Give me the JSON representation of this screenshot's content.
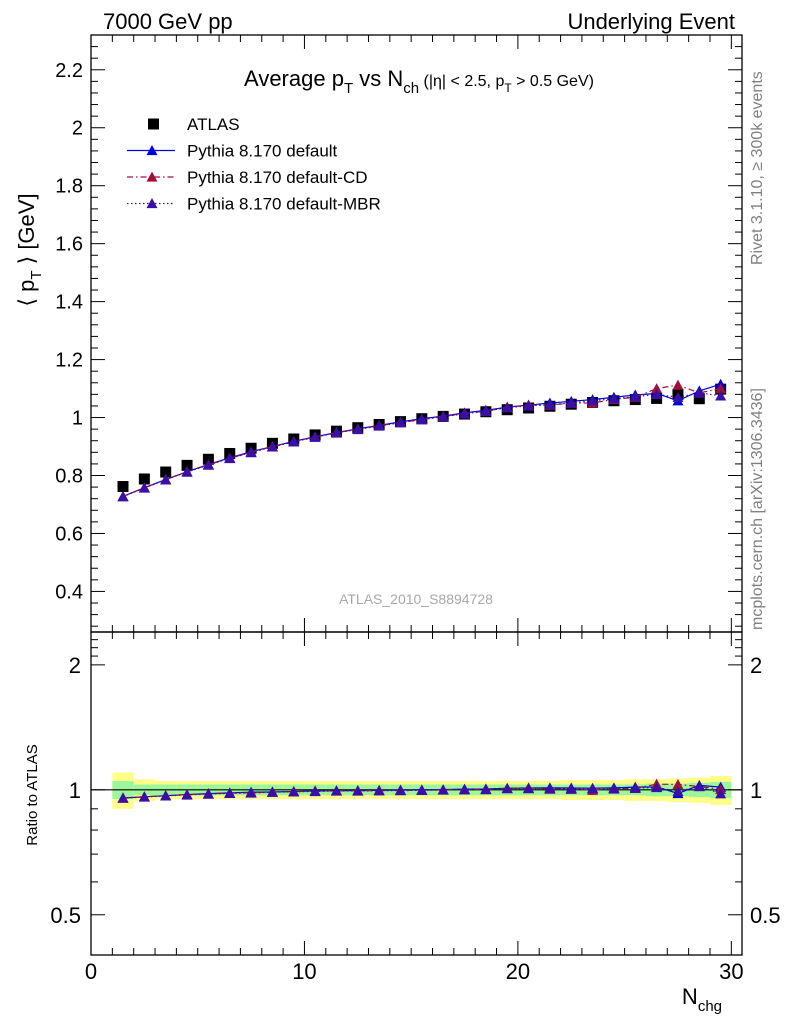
{
  "header": {
    "left": "7000 GeV pp",
    "right": "Underlying Event"
  },
  "side_labels": {
    "rivet": "Rivet 3.1.10, ≥ 300k events",
    "mcplots": "mcplots.cern.ch [arXiv:1306.3436]"
  },
  "watermark": "ATLAS_2010_S8894728",
  "title": {
    "p1": "Average p",
    "sub1": "T",
    "p2": " vs N",
    "sub2": "ch",
    "p3": " (|η| < 2.5, p",
    "sub3": "T",
    "p4": " > 0.5 GeV)"
  },
  "ylabel": {
    "pre": "⟨ p",
    "sub": "T",
    "post": " ⟩ [GeV]"
  },
  "ratio_ylabel": "Ratio to ATLAS",
  "xlabel": {
    "main": "N",
    "sub": "chg"
  },
  "legend": [
    {
      "label": "ATLAS",
      "marker": "square",
      "line": "none",
      "color": "#000000"
    },
    {
      "label": "Pythia 8.170 default",
      "marker": "triangle",
      "line": "solid",
      "color": "#0000dd"
    },
    {
      "label": "Pythia 8.170 default-CD",
      "marker": "triangle",
      "line": "dashdot",
      "color": "#a0103a"
    },
    {
      "label": "Pythia 8.170 default-MBR",
      "marker": "triangle",
      "line": "dotted",
      "color": "#3a0fa8"
    }
  ],
  "colors": {
    "band_inner": "#9cf79c",
    "band_outer": "#ffff88"
  },
  "chart_data": [
    {
      "type": "scatter",
      "panel": "main",
      "x": [
        1.5,
        2.5,
        3.5,
        4.5,
        5.5,
        6.5,
        7.5,
        8.5,
        9.5,
        10.5,
        11.5,
        12.5,
        13.5,
        14.5,
        15.5,
        16.5,
        17.5,
        18.5,
        19.5,
        20.5,
        21.5,
        22.5,
        23.5,
        24.5,
        25.5,
        26.5,
        27.5,
        28.5,
        29.5
      ],
      "series": [
        {
          "name": "ATLAS",
          "values": [
            0.762,
            0.788,
            0.812,
            0.835,
            0.856,
            0.876,
            0.894,
            0.911,
            0.926,
            0.94,
            0.953,
            0.965,
            0.976,
            0.986,
            0.996,
            1.004,
            1.012,
            1.02,
            1.027,
            1.033,
            1.039,
            1.046,
            1.052,
            1.058,
            1.062,
            1.066,
            1.08,
            1.065,
            1.098
          ]
        },
        {
          "name": "Pythia 8.170 default",
          "values": [
            0.728,
            0.758,
            0.786,
            0.813,
            0.838,
            0.861,
            0.882,
            0.9,
            0.918,
            0.934,
            0.948,
            0.961,
            0.973,
            0.985,
            0.996,
            1.005,
            1.016,
            1.025,
            1.036,
            1.043,
            1.05,
            1.056,
            1.062,
            1.07,
            1.078,
            1.083,
            1.058,
            1.092,
            1.115
          ]
        },
        {
          "name": "Pythia 8.170 default-CD",
          "values": [
            0.728,
            0.758,
            0.786,
            0.813,
            0.837,
            0.86,
            0.88,
            0.9,
            0.917,
            0.933,
            0.948,
            0.96,
            0.972,
            0.983,
            0.993,
            1.004,
            1.014,
            1.022,
            1.035,
            1.043,
            1.043,
            1.05,
            1.05,
            1.063,
            1.07,
            1.1,
            1.112,
            1.085,
            1.1
          ]
        },
        {
          "name": "Pythia 8.170 default-MBR",
          "values": [
            0.727,
            0.757,
            0.785,
            0.812,
            0.836,
            0.859,
            0.879,
            0.899,
            0.916,
            0.932,
            0.947,
            0.959,
            0.971,
            0.982,
            0.993,
            1.003,
            1.013,
            1.022,
            1.034,
            1.04,
            1.045,
            1.05,
            1.058,
            1.065,
            1.072,
            1.08,
            1.07,
            1.085,
            1.075
          ]
        }
      ],
      "xlim": [
        0,
        30.5
      ],
      "ylim": [
        0.26,
        2.32
      ],
      "yticks": [
        0.4,
        0.6,
        0.8,
        1,
        1.2,
        1.4,
        1.6,
        1.8,
        2,
        2.2
      ],
      "ytick_labels": [
        "0.4",
        "0.6",
        "0.8",
        "1",
        "1.2",
        "1.4",
        "1.6",
        "1.8",
        "2",
        "2.2"
      ],
      "legend_position": "top-left"
    },
    {
      "type": "line",
      "panel": "ratio",
      "y_scale": "log",
      "x": [
        1.5,
        2.5,
        3.5,
        4.5,
        5.5,
        6.5,
        7.5,
        8.5,
        9.5,
        10.5,
        11.5,
        12.5,
        13.5,
        14.5,
        15.5,
        16.5,
        17.5,
        18.5,
        19.5,
        20.5,
        21.5,
        22.5,
        23.5,
        24.5,
        25.5,
        26.5,
        27.5,
        28.5,
        29.5
      ],
      "band_inner": [
        0.05,
        0.03,
        0.03,
        0.03,
        0.03,
        0.03,
        0.03,
        0.03,
        0.03,
        0.03,
        0.03,
        0.03,
        0.03,
        0.03,
        0.03,
        0.03,
        0.03,
        0.03,
        0.03,
        0.03,
        0.03,
        0.03,
        0.03,
        0.03,
        0.03,
        0.035,
        0.035,
        0.04,
        0.045
      ],
      "band_outer": [
        0.1,
        0.06,
        0.05,
        0.05,
        0.05,
        0.05,
        0.05,
        0.05,
        0.05,
        0.05,
        0.05,
        0.05,
        0.05,
        0.05,
        0.05,
        0.05,
        0.05,
        0.05,
        0.05,
        0.05,
        0.05,
        0.055,
        0.055,
        0.055,
        0.06,
        0.06,
        0.065,
        0.07,
        0.08
      ],
      "series": [
        {
          "name": "Pythia 8.170 default",
          "values": [
            0.956,
            0.962,
            0.968,
            0.974,
            0.979,
            0.983,
            0.987,
            0.988,
            0.991,
            0.994,
            0.995,
            0.996,
            0.997,
            0.999,
            1.0,
            1.001,
            1.004,
            1.005,
            1.009,
            1.01,
            1.011,
            1.01,
            1.009,
            1.011,
            1.015,
            1.016,
            0.98,
            1.025,
            1.015
          ]
        },
        {
          "name": "Pythia 8.170 default-CD",
          "values": [
            0.956,
            0.962,
            0.968,
            0.974,
            0.978,
            0.982,
            0.984,
            0.988,
            0.99,
            0.993,
            0.995,
            0.995,
            0.996,
            0.997,
            0.997,
            1.0,
            1.002,
            1.002,
            1.008,
            1.01,
            1.004,
            1.004,
            0.998,
            1.005,
            1.008,
            1.032,
            1.03,
            1.019,
            1.002
          ]
        },
        {
          "name": "Pythia 8.170 default-MBR",
          "values": [
            0.955,
            0.961,
            0.967,
            0.972,
            0.977,
            0.981,
            0.983,
            0.987,
            0.989,
            0.991,
            0.994,
            0.994,
            0.995,
            0.996,
            0.997,
            0.999,
            1.001,
            1.002,
            1.007,
            1.007,
            1.006,
            1.004,
            1.006,
            1.007,
            1.009,
            1.013,
            0.991,
            1.019,
            0.979
          ]
        }
      ],
      "xlim": [
        0,
        30.5
      ],
      "ylim": [
        0.4,
        2.4
      ],
      "yticks": [
        0.5,
        1,
        2
      ],
      "ytick_labels": [
        "0.5",
        "1",
        "2"
      ],
      "xticks": [
        0,
        10,
        20,
        30
      ],
      "xtick_labels": [
        "0",
        "10",
        "20",
        "30"
      ]
    }
  ]
}
